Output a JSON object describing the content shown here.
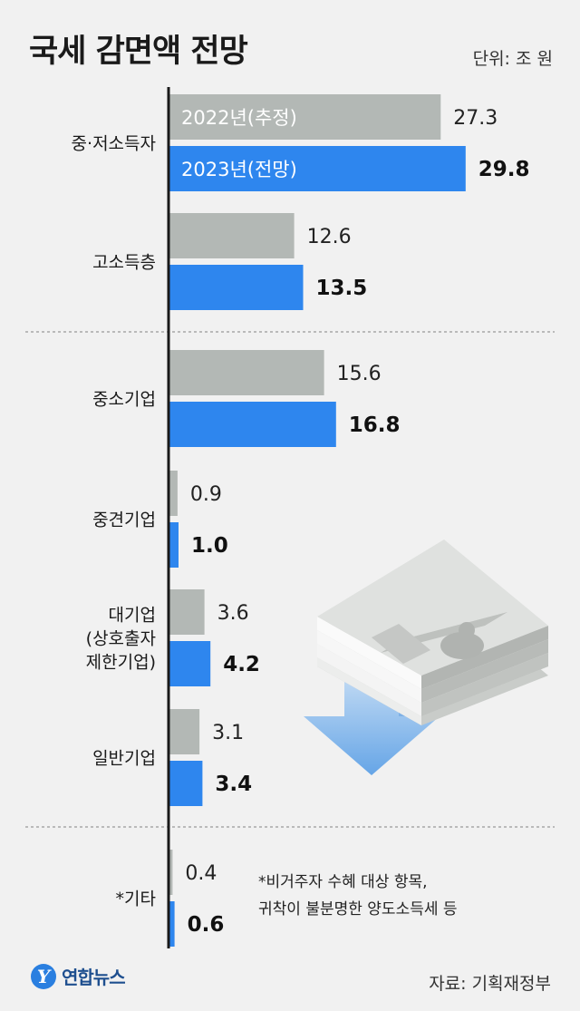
{
  "header": {
    "title": "국세 감면액 전망",
    "unit": "단위: 조 원"
  },
  "footnote": {
    "line1": "*비거주자 수혜 대상 항목,",
    "line2": "귀착이 불분명한 양도소득세 등"
  },
  "brand": {
    "logo_mark": "Y",
    "logo_name": "연합뉴스"
  },
  "source": "자료: 기획재정부",
  "colors": {
    "series_2022": "#b3b8b5",
    "series_2023": "#2e86ee",
    "axis": "#1a1a1a",
    "background": "#f1f1f1"
  },
  "chart_data": {
    "type": "bar",
    "orientation": "horizontal",
    "categories": [
      [
        "중·저소득자"
      ],
      [
        "고소득층"
      ],
      [
        "중소기업"
      ],
      [
        "중견기업"
      ],
      [
        "대기업",
        "(상호출자",
        "제한기업)"
      ],
      [
        "일반기업"
      ],
      [
        "*기타"
      ]
    ],
    "series": [
      {
        "name": "2022년(추정)",
        "values": [
          27.3,
          12.6,
          15.6,
          0.9,
          3.6,
          3.1,
          0.4
        ]
      },
      {
        "name": "2023년(전망)",
        "values": [
          29.8,
          13.5,
          16.8,
          1.0,
          4.2,
          3.4,
          0.6
        ]
      }
    ],
    "value_labels": [
      [
        "27.3",
        "12.6",
        "15.6",
        "0.9",
        "3.6",
        "3.1",
        "0.4"
      ],
      [
        "29.8",
        "13.5",
        "16.8",
        "1.0",
        "4.2",
        "3.4",
        "0.6"
      ]
    ],
    "legend": "inside-first-bars",
    "xlim": [
      0,
      30
    ],
    "grid": false,
    "group_separators_after": [
      1,
      5
    ]
  }
}
